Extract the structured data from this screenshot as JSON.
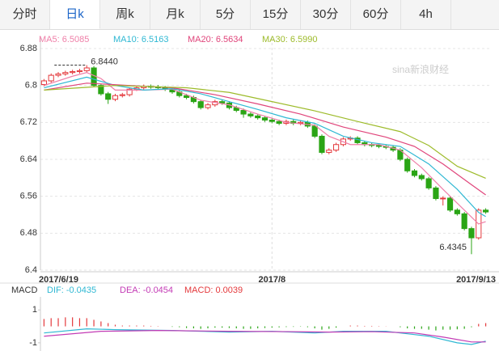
{
  "tabs": [
    "分时",
    "日k",
    "周k",
    "月k",
    "5分",
    "15分",
    "30分",
    "60分",
    "4h"
  ],
  "active_tab": 1,
  "chart_data": [
    {
      "type": "candlestick",
      "watermark": "sina新浪财经",
      "categories": [
        "2017/6/19",
        null,
        null,
        null,
        null,
        null,
        null,
        null,
        null,
        null,
        null,
        null,
        null,
        null,
        null,
        null,
        null,
        null,
        null,
        null,
        null,
        null,
        null,
        null,
        null,
        null,
        null,
        null,
        null,
        null,
        null,
        null,
        "2017/8",
        null,
        null,
        null,
        null,
        null,
        null,
        null,
        null,
        null,
        null,
        null,
        null,
        null,
        null,
        null,
        null,
        null,
        null,
        null,
        null,
        null,
        null,
        null,
        null,
        null,
        null,
        null,
        null,
        null,
        "2017/9/13"
      ],
      "open": [
        6.802,
        6.81,
        6.822,
        6.825,
        6.828,
        6.83,
        6.832,
        6.838,
        6.8,
        6.782,
        6.77,
        6.778,
        6.78,
        6.792,
        6.795,
        6.798,
        6.797,
        6.795,
        6.792,
        6.786,
        6.778,
        6.774,
        6.765,
        6.752,
        6.758,
        6.765,
        6.762,
        6.752,
        6.746,
        6.738,
        6.734,
        6.73,
        6.725,
        6.722,
        6.718,
        6.722,
        6.718,
        6.72,
        6.712,
        6.69,
        6.655,
        6.66,
        6.672,
        6.684,
        6.686,
        6.676,
        6.672,
        6.67,
        6.668,
        6.666,
        6.66,
        6.64,
        6.615,
        6.605,
        6.598,
        6.578,
        6.555,
        6.556,
        6.53,
        6.522,
        6.49,
        6.47,
        6.53
      ],
      "close": [
        6.81,
        6.822,
        6.825,
        6.828,
        6.83,
        6.832,
        6.838,
        6.8,
        6.782,
        6.77,
        6.778,
        6.78,
        6.792,
        6.795,
        6.798,
        6.797,
        6.795,
        6.792,
        6.786,
        6.778,
        6.774,
        6.765,
        6.752,
        6.758,
        6.765,
        6.762,
        6.752,
        6.746,
        6.738,
        6.734,
        6.73,
        6.725,
        6.722,
        6.718,
        6.722,
        6.718,
        6.72,
        6.712,
        6.69,
        6.655,
        6.66,
        6.672,
        6.684,
        6.686,
        6.676,
        6.672,
        6.67,
        6.668,
        6.666,
        6.66,
        6.64,
        6.615,
        6.605,
        6.598,
        6.578,
        6.555,
        6.556,
        6.53,
        6.522,
        6.49,
        6.47,
        6.53,
        6.526
      ],
      "high": [
        6.814,
        6.826,
        6.829,
        6.832,
        6.834,
        6.836,
        6.844,
        6.842,
        6.804,
        6.786,
        6.782,
        6.784,
        6.796,
        6.799,
        6.802,
        6.802,
        6.801,
        6.799,
        6.796,
        6.79,
        6.782,
        6.778,
        6.769,
        6.762,
        6.769,
        6.769,
        6.766,
        6.756,
        6.75,
        6.742,
        6.738,
        6.734,
        6.729,
        6.726,
        6.726,
        6.726,
        6.724,
        6.724,
        6.716,
        6.694,
        6.664,
        6.676,
        6.688,
        6.69,
        6.69,
        6.68,
        6.676,
        6.674,
        6.672,
        6.67,
        6.664,
        6.644,
        6.619,
        6.609,
        6.602,
        6.582,
        6.56,
        6.56,
        6.534,
        6.526,
        6.494,
        6.534,
        6.534
      ],
      "low": [
        6.798,
        6.806,
        6.818,
        6.821,
        6.824,
        6.826,
        6.828,
        6.796,
        6.778,
        6.76,
        6.766,
        6.774,
        6.776,
        6.788,
        6.791,
        6.793,
        6.791,
        6.788,
        6.782,
        6.774,
        6.77,
        6.761,
        6.748,
        6.748,
        6.754,
        6.758,
        6.748,
        6.742,
        6.73,
        6.73,
        6.726,
        6.721,
        6.718,
        6.714,
        6.714,
        6.714,
        6.714,
        6.708,
        6.686,
        6.651,
        6.651,
        6.656,
        6.668,
        6.68,
        6.672,
        6.668,
        6.666,
        6.664,
        6.662,
        6.656,
        6.636,
        6.611,
        6.601,
        6.594,
        6.574,
        6.551,
        6.54,
        6.526,
        6.518,
        6.486,
        6.4345,
        6.466,
        6.522
      ],
      "up_color": "#e4393c",
      "down_color": "#2aa515",
      "annotations": [
        {
          "text": "6.8440"
        },
        {
          "text": "6.4345"
        }
      ],
      "series": [
        {
          "name": "MA5: 6.5085",
          "color": "#ef7fa8",
          "x": [
            0,
            4,
            6,
            8,
            10,
            14,
            18,
            22,
            26,
            30,
            34,
            38,
            40,
            43,
            47,
            50,
            53,
            56,
            59,
            61,
            62
          ],
          "values": [
            6.8,
            6.82,
            6.828,
            6.815,
            6.79,
            6.79,
            6.792,
            6.768,
            6.758,
            6.738,
            6.72,
            6.714,
            6.69,
            6.672,
            6.672,
            6.66,
            6.622,
            6.575,
            6.53,
            6.5,
            6.505
          ]
        },
        {
          "name": "MA10: 6.5163",
          "color": "#2fb8d3",
          "x": [
            0,
            6,
            10,
            14,
            18,
            22,
            26,
            30,
            34,
            38,
            42,
            46,
            50,
            54,
            58,
            61,
            62
          ],
          "values": [
            6.795,
            6.818,
            6.8,
            6.79,
            6.793,
            6.782,
            6.765,
            6.748,
            6.73,
            6.718,
            6.69,
            6.676,
            6.668,
            6.63,
            6.575,
            6.525,
            6.516
          ]
        },
        {
          "name": "MA20: 6.5634",
          "color": "#e0457b",
          "x": [
            0,
            6,
            12,
            18,
            24,
            30,
            36,
            42,
            48,
            52,
            56,
            60,
            62
          ],
          "values": [
            6.79,
            6.805,
            6.8,
            6.795,
            6.78,
            6.76,
            6.738,
            6.71,
            6.688,
            6.668,
            6.63,
            6.585,
            6.563
          ]
        },
        {
          "name": "MA30: 6.5990",
          "color": "#9dbb2a",
          "x": [
            0,
            10,
            20,
            26,
            32,
            38,
            44,
            50,
            54,
            58,
            62
          ],
          "values": [
            6.79,
            6.8,
            6.795,
            6.785,
            6.765,
            6.745,
            6.722,
            6.7,
            6.67,
            6.625,
            6.599
          ]
        }
      ],
      "ylim": [
        6.4,
        6.88
      ],
      "yticks": [
        6.4,
        6.48,
        6.56,
        6.64,
        6.72,
        6.8,
        6.88
      ],
      "grid": true
    },
    {
      "type": "macd",
      "title": "MACD",
      "histogram": {
        "name": "MACD: 0.0039",
        "color": "#e4393c",
        "negative_color": "#2aa515",
        "values": [
          0.45,
          0.5,
          0.5,
          0.55,
          0.55,
          0.5,
          0.5,
          0.4,
          0.3,
          0.2,
          0.1,
          0.05,
          0.05,
          0.05,
          0.05,
          0.03,
          0.02,
          0.0,
          -0.03,
          -0.05,
          -0.1,
          -0.12,
          -0.15,
          -0.12,
          -0.08,
          -0.08,
          -0.1,
          -0.12,
          -0.15,
          -0.15,
          -0.12,
          -0.1,
          -0.08,
          -0.06,
          -0.04,
          -0.03,
          -0.02,
          -0.05,
          -0.12,
          -0.2,
          -0.15,
          -0.08,
          0.0,
          0.05,
          0.05,
          0.03,
          0.03,
          0.02,
          0.01,
          0.0,
          -0.05,
          -0.12,
          -0.15,
          -0.15,
          -0.2,
          -0.25,
          -0.2,
          -0.2,
          -0.18,
          -0.15,
          -0.05,
          0.15,
          0.2
        ]
      },
      "series": [
        {
          "name": "DIF: -0.0435",
          "color": "#2fb8d3",
          "x": [
            0,
            6,
            10,
            18,
            26,
            32,
            38,
            42,
            48,
            54,
            58,
            60,
            62
          ],
          "values": [
            -0.4,
            -0.15,
            -0.2,
            -0.25,
            -0.35,
            -0.3,
            -0.4,
            -0.3,
            -0.3,
            -0.6,
            -1.0,
            -1.1,
            -0.9
          ]
        },
        {
          "name": "DEA: -0.0454",
          "color": "#c33bb5",
          "x": [
            0,
            8,
            16,
            26,
            34,
            40,
            46,
            52,
            56,
            60,
            62
          ],
          "values": [
            -0.6,
            -0.3,
            -0.25,
            -0.3,
            -0.32,
            -0.35,
            -0.32,
            -0.4,
            -0.65,
            -0.95,
            -0.95
          ]
        }
      ],
      "ylim": [
        -1.5,
        1.8
      ],
      "yticks": [
        -1,
        1
      ]
    }
  ]
}
